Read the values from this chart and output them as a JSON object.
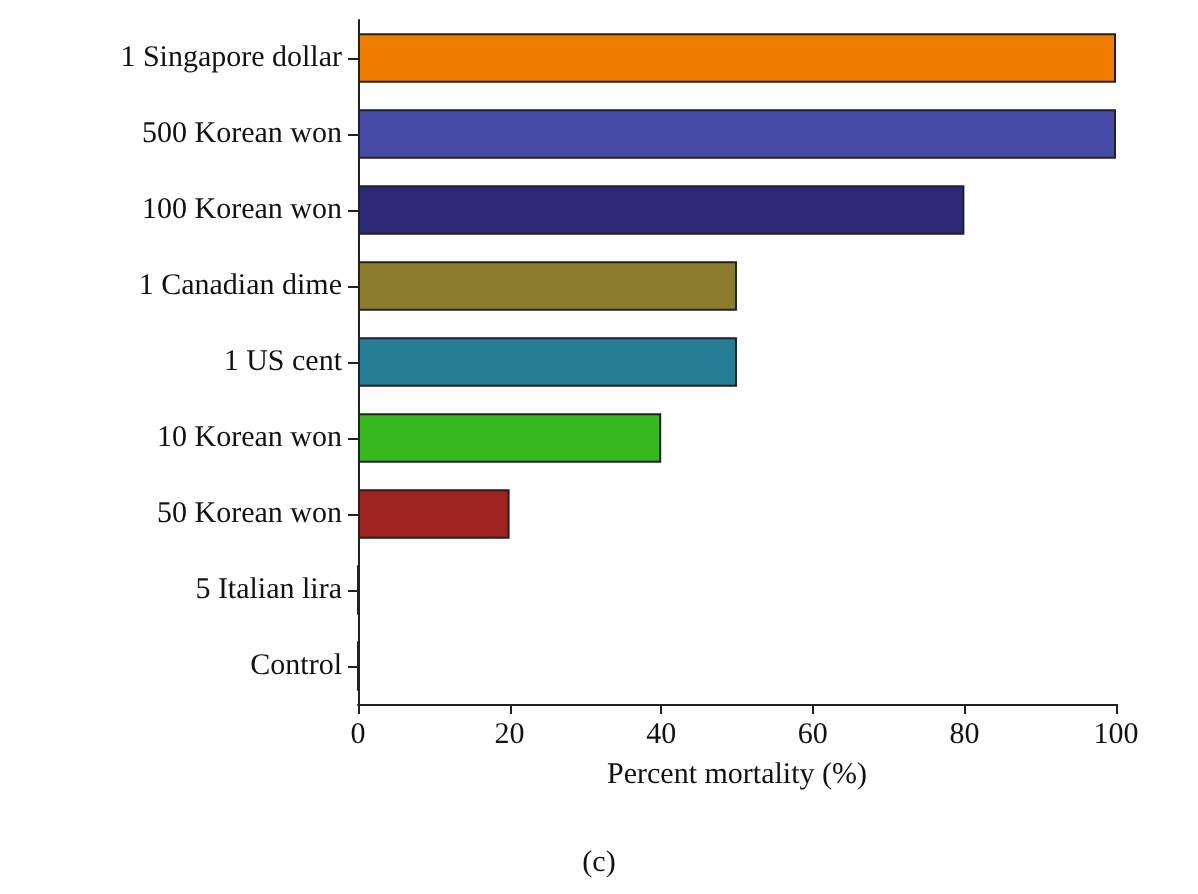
{
  "chart_data": {
    "type": "bar",
    "orientation": "horizontal",
    "categories": [
      "1 Singapore dollar",
      "500 Korean won",
      "100 Korean won",
      "1 Canadian dime",
      "1 US cent",
      "10 Korean won",
      "50 Korean won",
      "5 Italian lira",
      "Control"
    ],
    "values": [
      100,
      100,
      80,
      50,
      50,
      40,
      20,
      0,
      0
    ],
    "colors": [
      "#f07d00",
      "#464ca5",
      "#2d2a78",
      "#8b7c2e",
      "#257e96",
      "#35b91f",
      "#9e221d",
      "#222222",
      "#222222"
    ],
    "xlim": [
      0,
      100
    ],
    "xticks": [
      0,
      20,
      40,
      60,
      80,
      100
    ],
    "xlabel": "Percent mortality (%)",
    "annotations": [
      "(c)"
    ],
    "grid": false
  }
}
